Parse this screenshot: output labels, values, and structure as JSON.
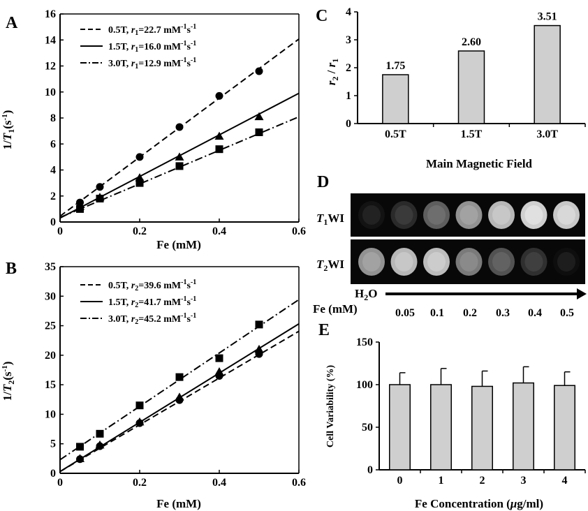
{
  "chart_data": [
    {
      "panel": "A",
      "type": "scatter",
      "xlabel": "Fe (mM)",
      "ylabel_main": "1/",
      "ylabel_T": "T",
      "ylabel_sub": "1",
      "ylabel_unit": "(s",
      "ylabel_sup": "-1",
      "ylabel_close": ")",
      "xlim": [
        0,
        0.6
      ],
      "ylim": [
        0,
        16
      ],
      "xticks": [
        "0",
        "0.2",
        "0.4",
        "0.6"
      ],
      "yticks": [
        "0",
        "2",
        "4",
        "6",
        "8",
        "10",
        "12",
        "14",
        "16"
      ],
      "series": [
        {
          "name": "0.5T, r1=22.7 mM-1s-1",
          "legend_field": "0.5T, ",
          "legend_r": "r",
          "legend_sub": "1",
          "legend_val": "=22.7 mM",
          "legend_sup1": "-1",
          "legend_s": "s",
          "legend_sup2": "-1",
          "marker": "circle",
          "line": "dash",
          "x": [
            0.05,
            0.1,
            0.2,
            0.3,
            0.4,
            0.5
          ],
          "y": [
            1.5,
            2.7,
            5.0,
            7.3,
            9.7,
            11.6
          ],
          "fit": {
            "slope": 22.7,
            "intercept": 0.45
          }
        },
        {
          "name": "1.5T, r1=16.0 mM-1s-1",
          "legend_field": "1.5T, ",
          "legend_r": "r",
          "legend_sub": "1",
          "legend_val": "=16.0 mM",
          "legend_sup1": "-1",
          "legend_s": "s",
          "legend_sup2": "-1",
          "marker": "triangle",
          "line": "solid",
          "x": [
            0.05,
            0.1,
            0.2,
            0.3,
            0.4,
            0.5
          ],
          "y": [
            1.2,
            1.9,
            3.4,
            5.0,
            6.6,
            8.1
          ],
          "fit": {
            "slope": 16.0,
            "intercept": 0.3
          }
        },
        {
          "name": "3.0T, r1=12.9 mM-1s-1",
          "legend_field": "3.0T, ",
          "legend_r": "r",
          "legend_sub": "1",
          "legend_val": "=12.9 mM",
          "legend_sup1": "-1",
          "legend_s": "s",
          "legend_sup2": "-1",
          "marker": "square",
          "line": "dashdot",
          "x": [
            0.05,
            0.1,
            0.2,
            0.3,
            0.4,
            0.5
          ],
          "y": [
            1.0,
            1.8,
            3.0,
            4.3,
            5.6,
            6.9
          ],
          "fit": {
            "slope": 12.9,
            "intercept": 0.35
          }
        }
      ]
    },
    {
      "panel": "B",
      "type": "scatter",
      "xlabel": "Fe (mM)",
      "ylabel_main": "1/",
      "ylabel_T": "T",
      "ylabel_sub": "2",
      "ylabel_unit": "(s",
      "ylabel_sup": "-1",
      "ylabel_close": ")",
      "xlim": [
        0,
        0.6
      ],
      "ylim": [
        0,
        35
      ],
      "xticks": [
        "0",
        "0.2",
        "0.4",
        "0.6"
      ],
      "yticks": [
        "0",
        "5",
        "10",
        "15",
        "20",
        "25",
        "30",
        "35"
      ],
      "series": [
        {
          "name": "0.5T, r2=39.6 mM-1s-1",
          "legend_field": "0.5T, ",
          "legend_r": "r",
          "legend_sub": "2",
          "legend_val": "=39.6 mM",
          "legend_sup1": "-1",
          "legend_s": "s",
          "legend_sup2": "-1",
          "marker": "circle",
          "line": "dash",
          "x": [
            0.05,
            0.1,
            0.2,
            0.3,
            0.4,
            0.5
          ],
          "y": [
            2.4,
            4.6,
            8.5,
            12.4,
            16.5,
            20.2
          ],
          "fit": {
            "slope": 39.6,
            "intercept": 0.3
          }
        },
        {
          "name": "1.5T, r2=41.7 mM-1s-1",
          "legend_field": "1.5T, ",
          "legend_r": "r",
          "legend_sub": "2",
          "legend_val": "=41.7 mM",
          "legend_sup1": "-1",
          "legend_s": "s",
          "legend_sup2": "-1",
          "marker": "triangle",
          "line": "solid",
          "x": [
            0.05,
            0.1,
            0.2,
            0.3,
            0.4,
            0.5
          ],
          "y": [
            2.5,
            4.8,
            8.7,
            12.9,
            17.2,
            21.0
          ],
          "fit": {
            "slope": 41.7,
            "intercept": 0.3
          }
        },
        {
          "name": "3.0T, r2=45.2 mM-1s-1",
          "legend_field": "3.0T, ",
          "legend_r": "r",
          "legend_sub": "2",
          "legend_val": "=45.2 mM",
          "legend_sup1": "-1",
          "legend_s": "s",
          "legend_sup2": "-1",
          "marker": "square",
          "line": "dashdot",
          "x": [
            0.05,
            0.1,
            0.2,
            0.3,
            0.4,
            0.5
          ],
          "y": [
            4.5,
            6.7,
            11.5,
            16.3,
            19.5,
            25.2
          ],
          "fit": {
            "slope": 45.2,
            "intercept": 2.3
          }
        }
      ]
    },
    {
      "panel": "C",
      "type": "bar",
      "xlabel": "Main Magnetic Field",
      "ylabel_r2": "r",
      "ylabel_sub2": "2",
      "ylabel_slash": " / ",
      "ylabel_r1": "r",
      "ylabel_sub1": "1",
      "ylim": [
        0,
        4
      ],
      "yticks": [
        "0",
        "1",
        "2",
        "3",
        "4"
      ],
      "categories": [
        "0.5T",
        "1.5T",
        "3.0T"
      ],
      "values": [
        1.75,
        2.6,
        3.51
      ],
      "value_labels": [
        "1.75",
        "2.60",
        "3.51"
      ],
      "bar_color": "#cfcfcf"
    },
    {
      "panel": "E",
      "type": "bar",
      "xlabel_main": "Fe Concentration (",
      "xlabel_mu": "μ",
      "xlabel_end": "g/ml)",
      "ylabel": "Cell Variability (%)",
      "ylim": [
        0,
        150
      ],
      "yticks": [
        "0",
        "50",
        "100",
        "150"
      ],
      "categories": [
        "0",
        "1",
        "2",
        "3",
        "4"
      ],
      "values": [
        100,
        100,
        98,
        102,
        99
      ],
      "errors": [
        14,
        19,
        18,
        19,
        16
      ],
      "bar_color": "#cfcfcf"
    }
  ],
  "panel_D": {
    "letter": "D",
    "row1_T": "T",
    "row1_sub": "1",
    "row1_rest": "WI",
    "row2_T": "T",
    "row2_sub": "2",
    "row2_rest": "WI",
    "water_H": "H",
    "water_sub": "2",
    "water_O": "O",
    "fe_label": "Fe (mM)",
    "concentrations": [
      "0.05",
      "0.1",
      "0.2",
      "0.3",
      "0.4",
      "0.5"
    ],
    "t1_brightness": [
      0.08,
      0.18,
      0.4,
      0.62,
      0.78,
      0.88,
      0.85
    ],
    "t2_brightness": [
      0.62,
      0.78,
      0.8,
      0.52,
      0.35,
      0.2,
      0.06
    ]
  },
  "panel_letters": {
    "A": "A",
    "B": "B",
    "C": "C",
    "E": "E"
  }
}
